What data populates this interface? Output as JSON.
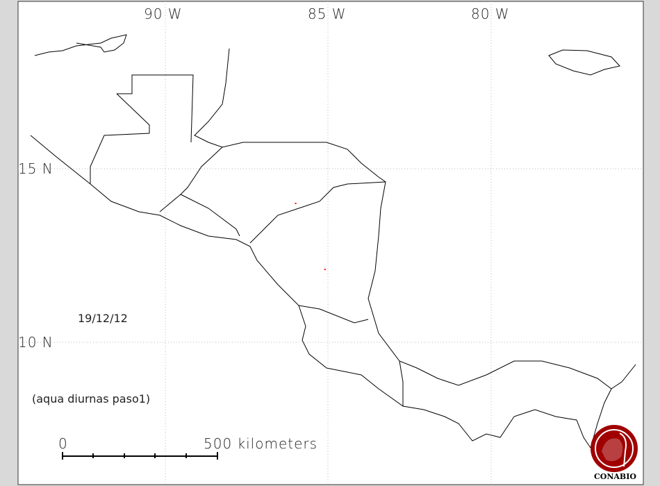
{
  "map": {
    "grid_labels": {
      "lon": [
        "90 W",
        "85 W",
        "80 W"
      ],
      "lat": [
        "15 N",
        "10 N"
      ]
    },
    "date": "19/12/12",
    "product": "(aqua diurnas paso1)",
    "scale": {
      "start": "0",
      "end": "500 kilometers"
    },
    "logo": "CONABIO",
    "colors": {
      "coastline": "#000000",
      "hotspot": "#ff0000",
      "logo": "#a00000",
      "grid": "#bbbbbb"
    },
    "hotspots": [
      {
        "lon": -86.0,
        "lat": 14.0
      },
      {
        "lon": -85.1,
        "lat": 12.1
      }
    ]
  }
}
